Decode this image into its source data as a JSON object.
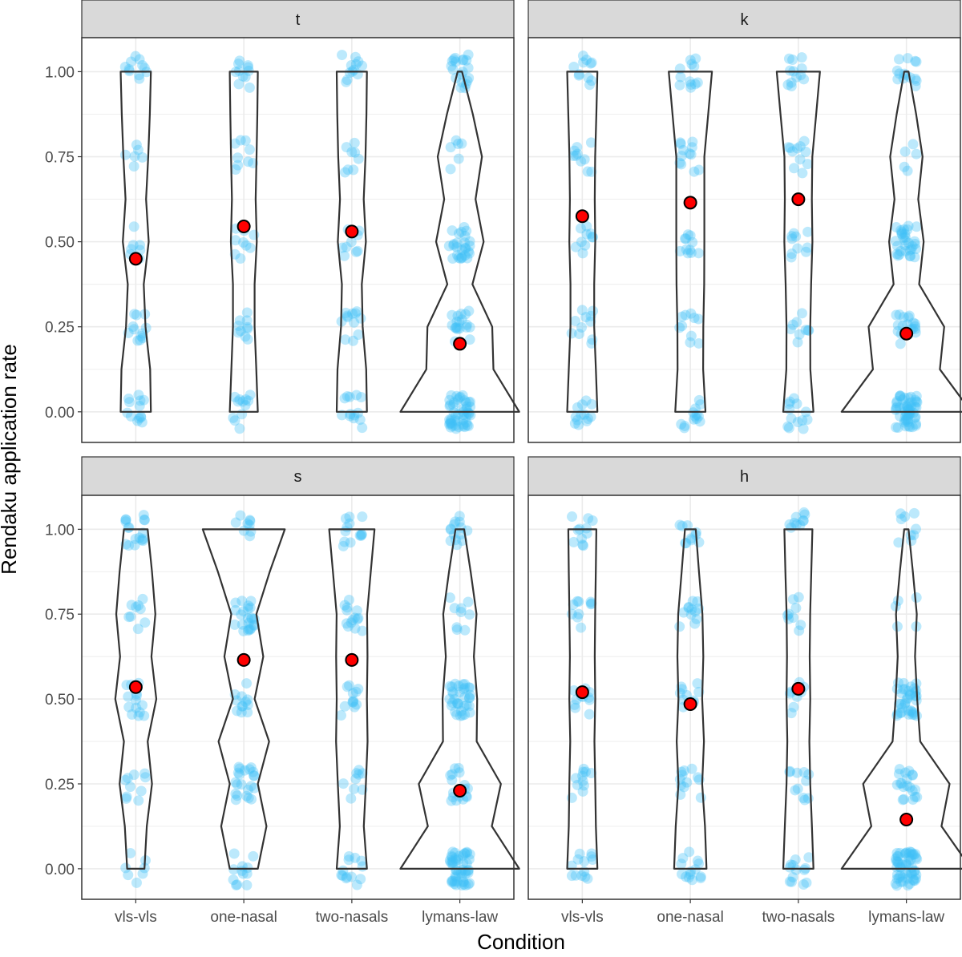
{
  "colors": {
    "jitter": "#3ec1f5",
    "mean": "#ff0000",
    "mean_outline": "#000000",
    "violin": "#333333",
    "strip_bg": "#d9d9d9",
    "grid": "#ebebeb",
    "panel_border": "#333333"
  },
  "chart_data": {
    "type": "violin",
    "xlabel": "Condition",
    "ylabel": "Rendaku application rate",
    "categories": [
      "vls-vls",
      "one-nasal",
      "two-nasals",
      "lymans-law"
    ],
    "ylim": [
      -0.09,
      1.1
    ],
    "yticks": [
      0.0,
      0.25,
      0.5,
      0.75,
      1.0
    ],
    "ytick_labels": [
      "0.00",
      "0.25",
      "0.50",
      "0.75",
      "1.00"
    ],
    "grid": true,
    "layout": "2x2 facets",
    "panels": [
      {
        "strip": "t",
        "means": [
          0.45,
          0.545,
          0.53,
          0.2
        ],
        "violin_half_widths": [
          [
            0.14,
            0.13,
            0.09,
            0.07,
            0.12,
            0.14
          ],
          [
            0.13,
            0.11,
            0.1,
            0.1,
            0.12,
            0.13
          ],
          [
            0.14,
            0.13,
            0.1,
            0.09,
            0.13,
            0.14
          ],
          [
            0.55,
            0.22,
            0.3,
            0.07,
            0.22,
            0.02
          ]
        ]
      },
      {
        "strip": "k",
        "means": [
          0.575,
          0.615,
          0.625,
          0.23
        ],
        "violin_half_widths": [
          [
            0.14,
            0.12,
            0.11,
            0.11,
            0.12,
            0.14
          ],
          [
            0.14,
            0.11,
            0.12,
            0.13,
            0.13,
            0.2
          ],
          [
            0.14,
            0.1,
            0.11,
            0.12,
            0.13,
            0.2
          ],
          [
            0.6,
            0.2,
            0.35,
            0.06,
            0.16,
            0.02
          ]
        ]
      },
      {
        "strip": "s",
        "means": [
          0.535,
          0.615,
          0.615,
          0.23
        ],
        "violin_half_widths": [
          [
            0.08,
            0.11,
            0.15,
            0.1,
            0.19,
            0.11
          ],
          [
            0.13,
            0.24,
            0.13,
            0.26,
            0.1,
            0.38
          ],
          [
            0.14,
            0.1,
            0.13,
            0.15,
            0.14,
            0.21
          ],
          [
            0.55,
            0.2,
            0.38,
            0.1,
            0.16,
            0.04
          ]
        ]
      },
      {
        "strip": "h",
        "means": [
          0.52,
          0.485,
          0.53,
          0.145
        ],
        "violin_half_widths": [
          [
            0.14,
            0.12,
            0.12,
            0.11,
            0.12,
            0.13
          ],
          [
            0.15,
            0.13,
            0.11,
            0.13,
            0.11,
            0.05
          ],
          [
            0.14,
            0.12,
            0.11,
            0.1,
            0.11,
            0.13
          ],
          [
            0.6,
            0.22,
            0.4,
            0.06,
            0.1,
            0.02
          ]
        ]
      }
    ]
  }
}
